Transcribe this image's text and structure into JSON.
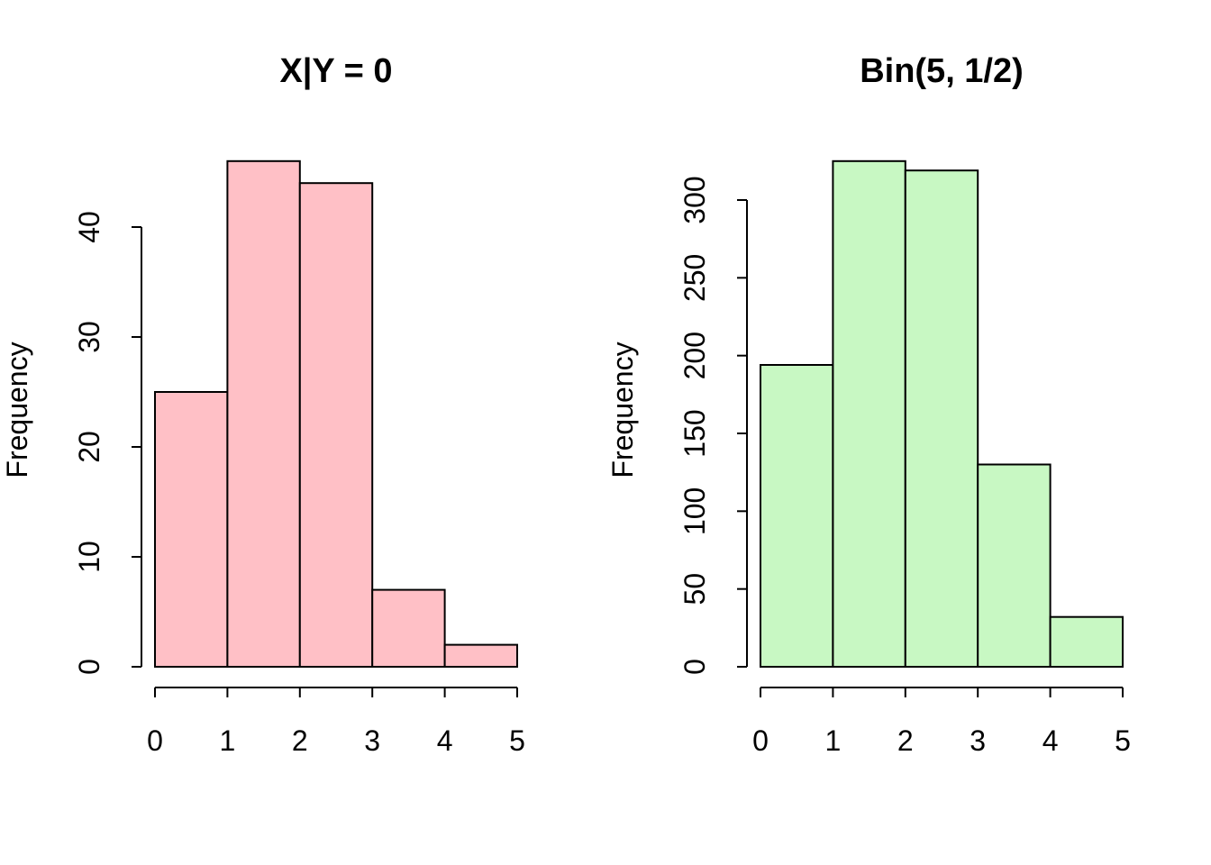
{
  "figure": {
    "background": "#ffffff",
    "text_color": "#000000",
    "axis_color": "#000000"
  },
  "chart_data": [
    {
      "type": "bar",
      "subtype": "histogram",
      "title": "X|Y = 0",
      "xlabel": "",
      "ylabel": "Frequency",
      "bin_edges": [
        0,
        1,
        2,
        3,
        4,
        5
      ],
      "values": [
        25,
        46,
        44,
        7,
        2
      ],
      "x_ticks": [
        0,
        1,
        2,
        3,
        4,
        5
      ],
      "y_ticks": [
        0,
        10,
        20,
        30,
        40
      ],
      "xlim": [
        0,
        5
      ],
      "ylim": [
        0,
        40
      ],
      "bar_fill": "#ffc0c6",
      "bar_border": "#000000",
      "grid": false,
      "legend": "none"
    },
    {
      "type": "bar",
      "subtype": "histogram",
      "title": "Bin(5, 1/2)",
      "xlabel": "",
      "ylabel": "Frequency",
      "bin_edges": [
        0,
        1,
        2,
        3,
        4,
        5
      ],
      "values": [
        194,
        325,
        319,
        130,
        32
      ],
      "x_ticks": [
        0,
        1,
        2,
        3,
        4,
        5
      ],
      "y_ticks": [
        0,
        50,
        100,
        150,
        200,
        250,
        300
      ],
      "xlim": [
        0,
        5
      ],
      "ylim": [
        0,
        300
      ],
      "bar_fill": "#c8f8c3",
      "bar_border": "#000000",
      "grid": false,
      "legend": "none"
    }
  ]
}
